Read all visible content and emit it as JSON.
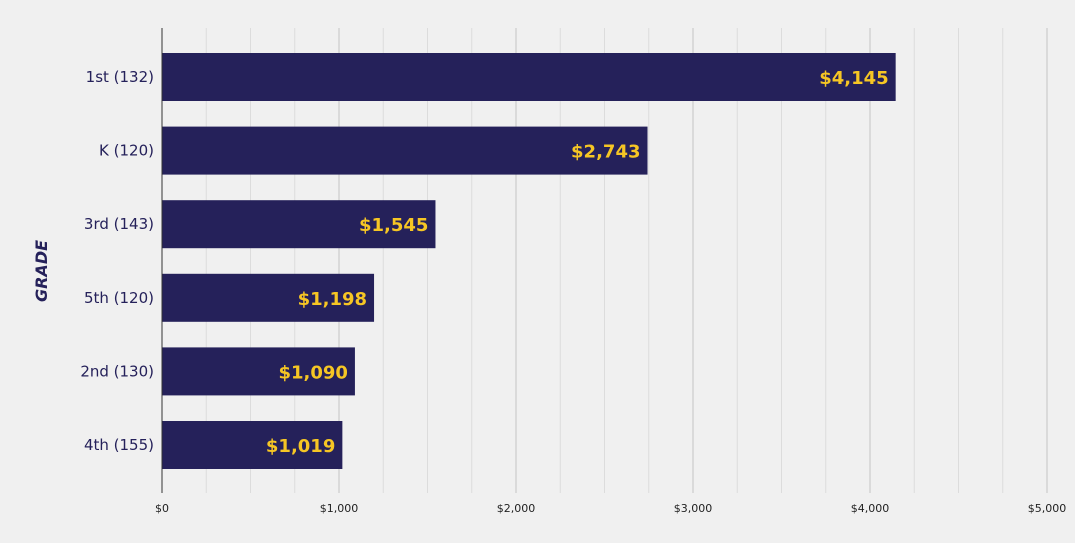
{
  "chart_data": {
    "type": "bar",
    "orientation": "horizontal",
    "ylabel": "GRADE",
    "xlabel": "",
    "categories": [
      "1st (132)",
      "K (120)",
      "3rd (143)",
      "5th (120)",
      "2nd (130)",
      "4th (155)"
    ],
    "values": [
      4145,
      2743,
      1545,
      1198,
      1090,
      1019
    ],
    "data_labels": [
      "$4,145",
      "$2,743",
      "$1,545",
      "$1,198",
      "$1,090",
      "$1,019"
    ],
    "xlim": [
      0,
      5000
    ],
    "x_ticks": [
      0,
      1000,
      2000,
      3000,
      4000,
      5000
    ],
    "x_tick_labels": [
      "$0",
      "$1,000",
      "$2,000",
      "$3,000",
      "$4,000",
      "$5,000"
    ],
    "grid": true,
    "legend": "none",
    "colors": {
      "bar": "#25215a",
      "data_label": "#f6c624",
      "background": "#f0f0f0",
      "grid_major": "#c4c4c4",
      "grid_minor": "#dcdcdc",
      "axis": "#333333"
    }
  }
}
